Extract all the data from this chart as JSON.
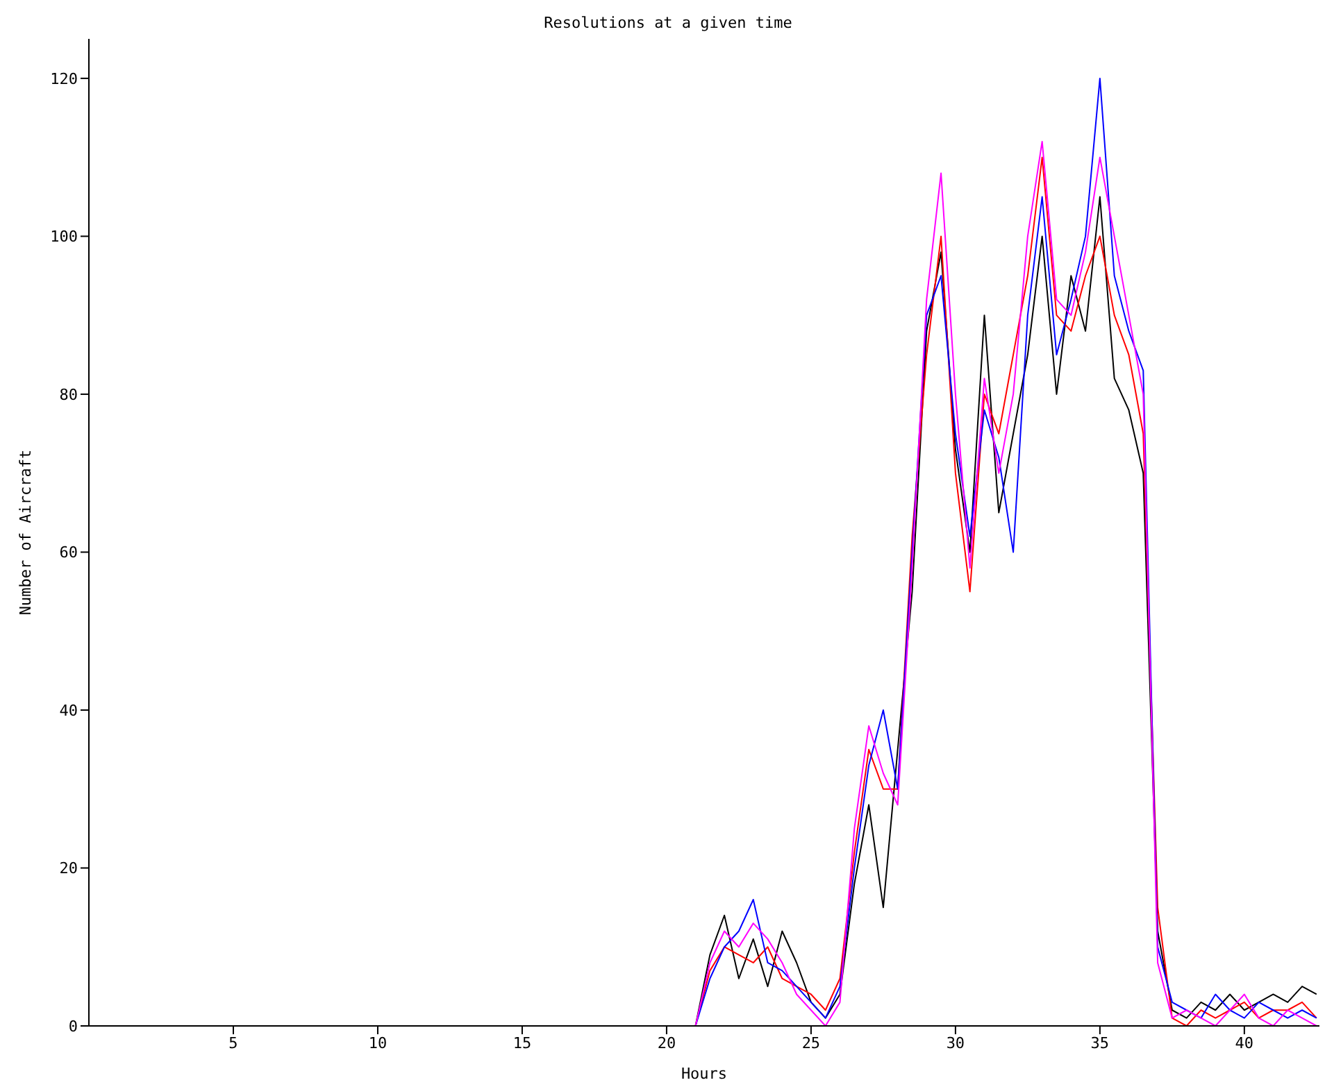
{
  "chart_data": {
    "type": "line",
    "title": "Resolutions at a given time",
    "xlabel": "Hours",
    "ylabel": "Number of Aircraft",
    "x": [
      21,
      21.5,
      22,
      22.5,
      23,
      23.5,
      24,
      24.5,
      25,
      25.5,
      26,
      26.5,
      27,
      27.5,
      28,
      28.5,
      29,
      29.5,
      30,
      30.5,
      31,
      31.5,
      32,
      32.5,
      33,
      33.5,
      34,
      34.5,
      35,
      35.5,
      36,
      36.5,
      37,
      37.5,
      38,
      38.5,
      39,
      39.5,
      40,
      40.5,
      41,
      41.5,
      42,
      42.5
    ],
    "xlim": [
      0,
      42.6
    ],
    "xticks": [
      5,
      10,
      15,
      20,
      25,
      30,
      35,
      40
    ],
    "ylim": [
      0,
      125
    ],
    "yticks": [
      0,
      20,
      40,
      60,
      80,
      100,
      120
    ],
    "grid": false,
    "legend": false,
    "marker": "none",
    "line_style": "solid",
    "series": [
      {
        "color": "#000000",
        "values": [
          0,
          9,
          14,
          6,
          11,
          5,
          12,
          8,
          3,
          1,
          4,
          18,
          28,
          15,
          35,
          55,
          88,
          98,
          73,
          60,
          90,
          65,
          75,
          85,
          100,
          80,
          95,
          88,
          105,
          82,
          78,
          70,
          12,
          2,
          1,
          3,
          2,
          4,
          2,
          3,
          4,
          3,
          5,
          4
        ]
      },
      {
        "color": "#ff0000",
        "values": [
          0,
          7,
          10,
          9,
          8,
          10,
          6,
          5,
          4,
          2,
          6,
          22,
          35,
          30,
          30,
          62,
          85,
          100,
          70,
          55,
          80,
          75,
          85,
          95,
          110,
          90,
          88,
          95,
          100,
          90,
          85,
          75,
          15,
          1,
          0,
          2,
          1,
          2,
          3,
          1,
          2,
          2,
          3,
          1
        ]
      },
      {
        "color": "#0000ff",
        "values": [
          0,
          6,
          10,
          12,
          16,
          8,
          7,
          5,
          3,
          1,
          5,
          20,
          33,
          40,
          30,
          60,
          90,
          95,
          75,
          62,
          78,
          72,
          60,
          90,
          105,
          85,
          92,
          100,
          120,
          95,
          88,
          83,
          10,
          3,
          2,
          1,
          4,
          2,
          1,
          3,
          2,
          1,
          2,
          1
        ]
      },
      {
        "color": "#ff00ff",
        "values": [
          0,
          8,
          12,
          10,
          13,
          11,
          8,
          4,
          2,
          0,
          3,
          25,
          38,
          32,
          28,
          58,
          92,
          108,
          80,
          58,
          82,
          70,
          80,
          100,
          112,
          92,
          90,
          98,
          110,
          100,
          90,
          80,
          8,
          1,
          2,
          1,
          0,
          2,
          4,
          1,
          0,
          2,
          1,
          0
        ]
      }
    ]
  }
}
